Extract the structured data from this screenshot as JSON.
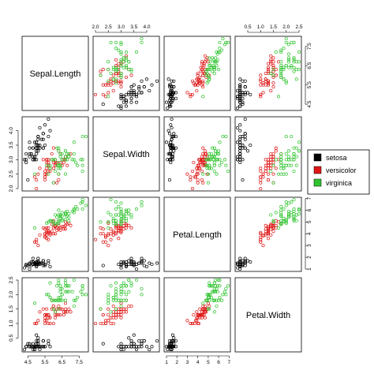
{
  "chart_data": {
    "type": "scatter",
    "subtype": "pairs-matrix",
    "variables": [
      "Sepal.Length",
      "Sepal.Width",
      "Petal.Length",
      "Petal.Width"
    ],
    "ranges": {
      "Sepal.Length": [
        4.3,
        7.9
      ],
      "Sepal.Width": [
        2.0,
        4.4
      ],
      "Petal.Length": [
        1.0,
        6.9
      ],
      "Petal.Width": [
        0.1,
        2.5
      ]
    },
    "ticks": {
      "Sepal.Length": [
        4.5,
        5.5,
        6.5,
        7.5
      ],
      "Sepal.Width": [
        2.0,
        2.5,
        3.0,
        3.5,
        4.0
      ],
      "Petal.Length": [
        1,
        2,
        3,
        4,
        5,
        6,
        7
      ],
      "Petal.Width": [
        0.5,
        1.0,
        1.5,
        2.0,
        2.5
      ]
    },
    "tick_labels": {
      "Sepal.Length": [
        "4.5",
        "5.5",
        "6.5",
        "7.5"
      ],
      "Sepal.Width": [
        "2.0",
        "2.5",
        "3.0",
        "3.5",
        "4.0"
      ],
      "Petal.Length": [
        "1",
        "2",
        "3",
        "4",
        "5",
        "6",
        "7"
      ],
      "Petal.Width": [
        "0.5",
        "1.0",
        "1.5",
        "2.0",
        "2.5"
      ]
    },
    "legend": {
      "placement": "right",
      "entries": [
        {
          "label": "setosa",
          "color": "#000000"
        },
        {
          "label": "versicolor",
          "color": "#df1515"
        },
        {
          "label": "virginica",
          "color": "#2fc42f"
        }
      ]
    },
    "series": [
      {
        "name": "setosa",
        "color": "#000000",
        "points": [
          [
            5.1,
            3.5,
            1.4,
            0.2
          ],
          [
            4.9,
            3.0,
            1.4,
            0.2
          ],
          [
            4.7,
            3.2,
            1.3,
            0.2
          ],
          [
            4.6,
            3.1,
            1.5,
            0.2
          ],
          [
            5.0,
            3.6,
            1.4,
            0.2
          ],
          [
            5.4,
            3.9,
            1.7,
            0.4
          ],
          [
            4.6,
            3.4,
            1.4,
            0.3
          ],
          [
            5.0,
            3.4,
            1.5,
            0.2
          ],
          [
            4.4,
            2.9,
            1.4,
            0.2
          ],
          [
            4.9,
            3.1,
            1.5,
            0.1
          ],
          [
            5.4,
            3.7,
            1.5,
            0.2
          ],
          [
            4.8,
            3.4,
            1.6,
            0.2
          ],
          [
            4.8,
            3.0,
            1.4,
            0.1
          ],
          [
            4.3,
            3.0,
            1.1,
            0.1
          ],
          [
            5.8,
            4.0,
            1.2,
            0.2
          ],
          [
            5.7,
            4.4,
            1.5,
            0.4
          ],
          [
            5.4,
            3.9,
            1.3,
            0.4
          ],
          [
            5.1,
            3.5,
            1.4,
            0.3
          ],
          [
            5.7,
            3.8,
            1.7,
            0.3
          ],
          [
            5.1,
            3.8,
            1.5,
            0.3
          ],
          [
            5.4,
            3.4,
            1.7,
            0.2
          ],
          [
            5.1,
            3.7,
            1.5,
            0.4
          ],
          [
            4.6,
            3.6,
            1.0,
            0.2
          ],
          [
            5.1,
            3.3,
            1.7,
            0.5
          ],
          [
            4.8,
            3.4,
            1.9,
            0.2
          ],
          [
            5.0,
            3.0,
            1.6,
            0.2
          ],
          [
            5.0,
            3.4,
            1.6,
            0.4
          ],
          [
            5.2,
            3.5,
            1.5,
            0.2
          ],
          [
            5.2,
            3.4,
            1.4,
            0.2
          ],
          [
            4.7,
            3.2,
            1.6,
            0.2
          ],
          [
            4.8,
            3.1,
            1.6,
            0.2
          ],
          [
            5.4,
            3.4,
            1.5,
            0.4
          ],
          [
            5.2,
            4.1,
            1.5,
            0.1
          ],
          [
            5.5,
            4.2,
            1.4,
            0.2
          ],
          [
            4.9,
            3.1,
            1.5,
            0.2
          ],
          [
            5.0,
            3.2,
            1.2,
            0.2
          ],
          [
            5.5,
            3.5,
            1.3,
            0.2
          ],
          [
            4.9,
            3.6,
            1.4,
            0.1
          ],
          [
            4.4,
            3.0,
            1.3,
            0.2
          ],
          [
            5.1,
            3.4,
            1.5,
            0.2
          ],
          [
            5.0,
            3.5,
            1.3,
            0.3
          ],
          [
            4.5,
            2.3,
            1.3,
            0.3
          ],
          [
            4.4,
            3.2,
            1.3,
            0.2
          ],
          [
            5.0,
            3.5,
            1.6,
            0.6
          ],
          [
            5.1,
            3.8,
            1.9,
            0.4
          ],
          [
            4.8,
            3.0,
            1.4,
            0.3
          ],
          [
            5.1,
            3.8,
            1.6,
            0.2
          ],
          [
            4.6,
            3.2,
            1.4,
            0.2
          ],
          [
            5.3,
            3.7,
            1.5,
            0.2
          ],
          [
            5.0,
            3.3,
            1.4,
            0.2
          ]
        ]
      },
      {
        "name": "versicolor",
        "color": "#df1515",
        "points": [
          [
            7.0,
            3.2,
            4.7,
            1.4
          ],
          [
            6.4,
            3.2,
            4.5,
            1.5
          ],
          [
            6.9,
            3.1,
            4.9,
            1.5
          ],
          [
            5.5,
            2.3,
            4.0,
            1.3
          ],
          [
            6.5,
            2.8,
            4.6,
            1.5
          ],
          [
            5.7,
            2.8,
            4.5,
            1.3
          ],
          [
            6.3,
            3.3,
            4.7,
            1.6
          ],
          [
            4.9,
            2.4,
            3.3,
            1.0
          ],
          [
            6.6,
            2.9,
            4.6,
            1.3
          ],
          [
            5.2,
            2.7,
            3.9,
            1.4
          ],
          [
            5.0,
            2.0,
            3.5,
            1.0
          ],
          [
            5.9,
            3.0,
            4.2,
            1.5
          ],
          [
            6.0,
            2.2,
            4.0,
            1.0
          ],
          [
            6.1,
            2.9,
            4.7,
            1.4
          ],
          [
            5.6,
            2.9,
            3.6,
            1.3
          ],
          [
            6.7,
            3.1,
            4.4,
            1.4
          ],
          [
            5.6,
            3.0,
            4.5,
            1.5
          ],
          [
            5.8,
            2.7,
            4.1,
            1.0
          ],
          [
            6.2,
            2.2,
            4.5,
            1.5
          ],
          [
            5.6,
            2.5,
            3.9,
            1.1
          ],
          [
            5.9,
            3.2,
            4.8,
            1.8
          ],
          [
            6.1,
            2.8,
            4.0,
            1.3
          ],
          [
            6.3,
            2.5,
            4.9,
            1.5
          ],
          [
            6.1,
            2.8,
            4.7,
            1.2
          ],
          [
            6.4,
            2.9,
            4.3,
            1.3
          ],
          [
            6.6,
            3.0,
            4.4,
            1.4
          ],
          [
            6.8,
            2.8,
            4.8,
            1.4
          ],
          [
            6.7,
            3.0,
            5.0,
            1.7
          ],
          [
            6.0,
            2.9,
            4.5,
            1.5
          ],
          [
            5.7,
            2.6,
            3.5,
            1.0
          ],
          [
            5.5,
            2.4,
            3.8,
            1.1
          ],
          [
            5.5,
            2.4,
            3.7,
            1.0
          ],
          [
            5.8,
            2.7,
            3.9,
            1.2
          ],
          [
            6.0,
            2.7,
            5.1,
            1.6
          ],
          [
            5.4,
            3.0,
            4.5,
            1.5
          ],
          [
            6.0,
            3.4,
            4.5,
            1.6
          ],
          [
            6.7,
            3.1,
            4.7,
            1.5
          ],
          [
            6.3,
            2.3,
            4.4,
            1.3
          ],
          [
            5.6,
            3.0,
            4.1,
            1.3
          ],
          [
            5.5,
            2.5,
            4.0,
            1.3
          ],
          [
            5.5,
            2.6,
            4.4,
            1.2
          ],
          [
            6.1,
            3.0,
            4.6,
            1.4
          ],
          [
            5.8,
            2.6,
            4.0,
            1.2
          ],
          [
            5.0,
            2.3,
            3.3,
            1.0
          ],
          [
            5.6,
            2.7,
            4.2,
            1.3
          ],
          [
            5.7,
            3.0,
            4.2,
            1.2
          ],
          [
            5.7,
            2.9,
            4.2,
            1.3
          ],
          [
            6.2,
            2.9,
            4.3,
            1.3
          ],
          [
            5.1,
            2.5,
            3.0,
            1.1
          ],
          [
            5.7,
            2.8,
            4.1,
            1.3
          ]
        ]
      },
      {
        "name": "virginica",
        "color": "#2fc42f",
        "points": [
          [
            6.3,
            3.3,
            6.0,
            2.5
          ],
          [
            5.8,
            2.7,
            5.1,
            1.9
          ],
          [
            7.1,
            3.0,
            5.9,
            2.1
          ],
          [
            6.3,
            2.9,
            5.6,
            1.8
          ],
          [
            6.5,
            3.0,
            5.8,
            2.2
          ],
          [
            7.6,
            3.0,
            6.6,
            2.1
          ],
          [
            4.9,
            2.5,
            4.5,
            1.7
          ],
          [
            7.3,
            2.9,
            6.3,
            1.8
          ],
          [
            6.7,
            2.5,
            5.8,
            1.8
          ],
          [
            7.2,
            3.6,
            6.1,
            2.5
          ],
          [
            6.5,
            3.2,
            5.1,
            2.0
          ],
          [
            6.4,
            2.7,
            5.3,
            1.9
          ],
          [
            6.8,
            3.0,
            5.5,
            2.1
          ],
          [
            5.7,
            2.5,
            5.0,
            2.0
          ],
          [
            5.8,
            2.8,
            5.1,
            2.4
          ],
          [
            6.4,
            3.2,
            5.3,
            2.3
          ],
          [
            6.5,
            3.0,
            5.5,
            1.8
          ],
          [
            7.7,
            3.8,
            6.7,
            2.2
          ],
          [
            7.7,
            2.6,
            6.9,
            2.3
          ],
          [
            6.0,
            2.2,
            5.0,
            1.5
          ],
          [
            6.9,
            3.2,
            5.7,
            2.3
          ],
          [
            5.6,
            2.8,
            4.9,
            2.0
          ],
          [
            7.7,
            2.8,
            6.7,
            2.0
          ],
          [
            6.3,
            2.7,
            4.9,
            1.8
          ],
          [
            6.7,
            3.3,
            5.7,
            2.1
          ],
          [
            7.2,
            3.2,
            6.0,
            1.8
          ],
          [
            6.2,
            2.8,
            4.8,
            1.8
          ],
          [
            6.1,
            3.0,
            4.9,
            1.8
          ],
          [
            6.4,
            2.8,
            5.6,
            2.1
          ],
          [
            7.2,
            3.0,
            5.8,
            1.6
          ],
          [
            7.4,
            2.8,
            6.1,
            1.9
          ],
          [
            7.9,
            3.8,
            6.4,
            2.0
          ],
          [
            6.4,
            2.8,
            5.6,
            2.2
          ],
          [
            6.3,
            2.8,
            5.1,
            1.5
          ],
          [
            6.1,
            2.6,
            5.6,
            1.4
          ],
          [
            7.7,
            3.0,
            6.1,
            2.3
          ],
          [
            6.3,
            3.4,
            5.6,
            2.4
          ],
          [
            6.4,
            3.1,
            5.5,
            1.8
          ],
          [
            6.0,
            3.0,
            4.8,
            1.8
          ],
          [
            6.9,
            3.1,
            5.4,
            2.1
          ],
          [
            6.7,
            3.1,
            5.6,
            2.4
          ],
          [
            6.9,
            3.1,
            5.1,
            2.3
          ],
          [
            5.8,
            2.7,
            5.1,
            1.9
          ],
          [
            6.8,
            3.2,
            5.9,
            2.3
          ],
          [
            6.7,
            3.3,
            5.7,
            2.5
          ],
          [
            6.7,
            3.0,
            5.2,
            2.3
          ],
          [
            6.3,
            2.5,
            5.0,
            1.9
          ],
          [
            6.5,
            3.0,
            5.2,
            2.0
          ],
          [
            6.2,
            3.4,
            5.4,
            2.3
          ],
          [
            5.9,
            3.0,
            5.1,
            1.8
          ]
        ]
      }
    ]
  }
}
